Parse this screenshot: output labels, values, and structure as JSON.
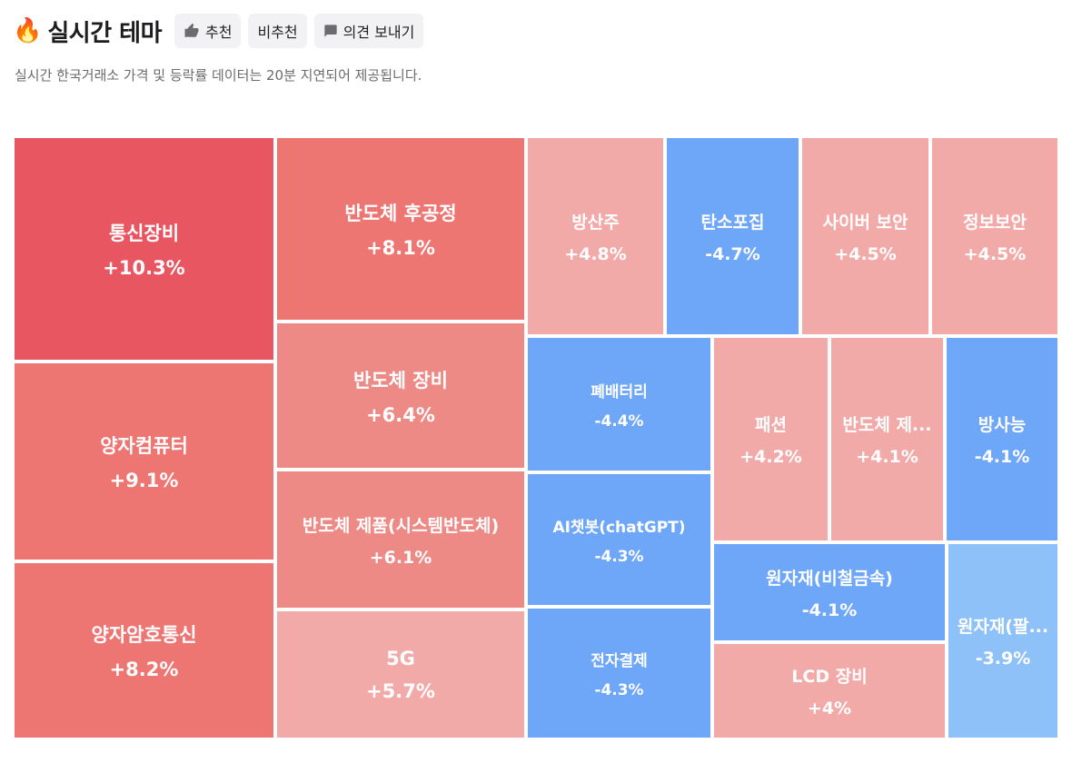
{
  "header": {
    "title_emoji": "🔥",
    "title": "실시간 테마",
    "recommend_label": "추천",
    "not_recommend_label": "비추천",
    "feedback_label": "의견 보내기",
    "subtitle": "실시간 한국거래소 가격 및 등락률 데이터는 20분 지연되어 제공됩니다."
  },
  "colors": {
    "up_strong": "#e85661",
    "up_medium": "#ed7572",
    "up_mid": "#ee8a86",
    "up_light": "#f2aaa8",
    "down_medium": "#6ea6f8",
    "down_light": "#8dc1f8"
  },
  "treemap": {
    "tiles": [
      {
        "name": "통신장비",
        "change": "+10.3%"
      },
      {
        "name": "양자컴퓨터",
        "change": "+9.1%"
      },
      {
        "name": "양자암호통신",
        "change": "+8.2%"
      },
      {
        "name": "반도체 후공정",
        "change": "+8.1%"
      },
      {
        "name": "반도체 장비",
        "change": "+6.4%"
      },
      {
        "name": "반도체 제품(시스템반도체)",
        "change": "+6.1%"
      },
      {
        "name": "5G",
        "change": "+5.7%"
      },
      {
        "name": "방산주",
        "change": "+4.8%"
      },
      {
        "name": "탄소포집",
        "change": "-4.7%"
      },
      {
        "name": "사이버 보안",
        "change": "+4.5%"
      },
      {
        "name": "정보보안",
        "change": "+4.5%"
      },
      {
        "name": "폐배터리",
        "change": "-4.4%"
      },
      {
        "name": "AI챗봇(chatGPT)",
        "change": "-4.3%"
      },
      {
        "name": "전자결제",
        "change": "-4.3%"
      },
      {
        "name": "패션",
        "change": "+4.2%"
      },
      {
        "name": "반도체 제...",
        "change": "+4.1%"
      },
      {
        "name": "방사능",
        "change": "-4.1%"
      },
      {
        "name": "원자재(비철금속)",
        "change": "-4.1%"
      },
      {
        "name": "LCD 장비",
        "change": "+4%"
      },
      {
        "name": "원자재(팔...",
        "change": "-3.9%"
      }
    ]
  }
}
